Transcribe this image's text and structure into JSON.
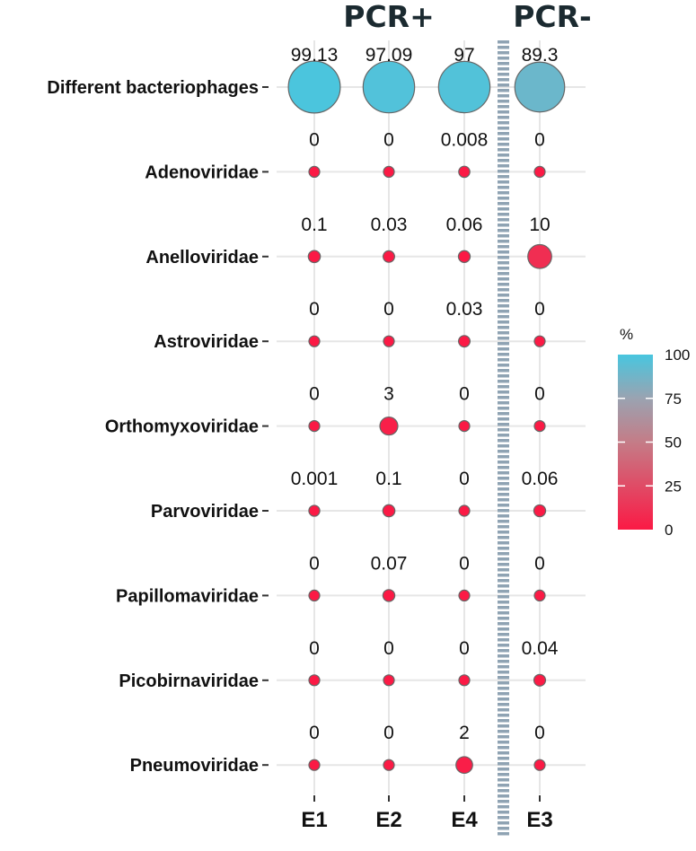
{
  "chart_data": {
    "type": "scatter",
    "title": "",
    "groups": [
      {
        "label": "PCR+",
        "columns": [
          "E1",
          "E2",
          "E4"
        ]
      },
      {
        "label": "PCR-",
        "columns": [
          "E3"
        ]
      }
    ],
    "x": [
      "E1",
      "E2",
      "E4",
      "E3"
    ],
    "y": [
      "Different bacteriophages",
      "Adenoviridae",
      "Anelloviridae",
      "Astroviridae",
      "Orthomyxoviridae",
      "Parvoviridae",
      "Papillomaviridae",
      "Picobirnaviridae",
      "Pneumoviridae"
    ],
    "values": [
      [
        "99.13",
        "97.09",
        "97",
        "89.3"
      ],
      [
        "0",
        "0",
        "0.008",
        "0"
      ],
      [
        "0.1",
        "0.03",
        "0.06",
        "10"
      ],
      [
        "0",
        "0",
        "0.03",
        "0"
      ],
      [
        "0",
        "3",
        "0",
        "0"
      ],
      [
        "0.001",
        "0.1",
        "0",
        "0.06"
      ],
      [
        "0",
        "0.07",
        "0",
        "0"
      ],
      [
        "0",
        "0",
        "0",
        "0.04"
      ],
      [
        "0",
        "0",
        "2",
        "0"
      ]
    ],
    "legend": {
      "title": "%",
      "ticks": [
        "100",
        "75",
        "50",
        "25",
        "0"
      ],
      "range": [
        0,
        100
      ],
      "placement": "right"
    },
    "colors": {
      "low": "#fb1a45",
      "mid": "#c47c87",
      "high": "#48c6df",
      "grid": "#e6e6e6",
      "divider": "#8fa3b3"
    },
    "grid": true
  }
}
